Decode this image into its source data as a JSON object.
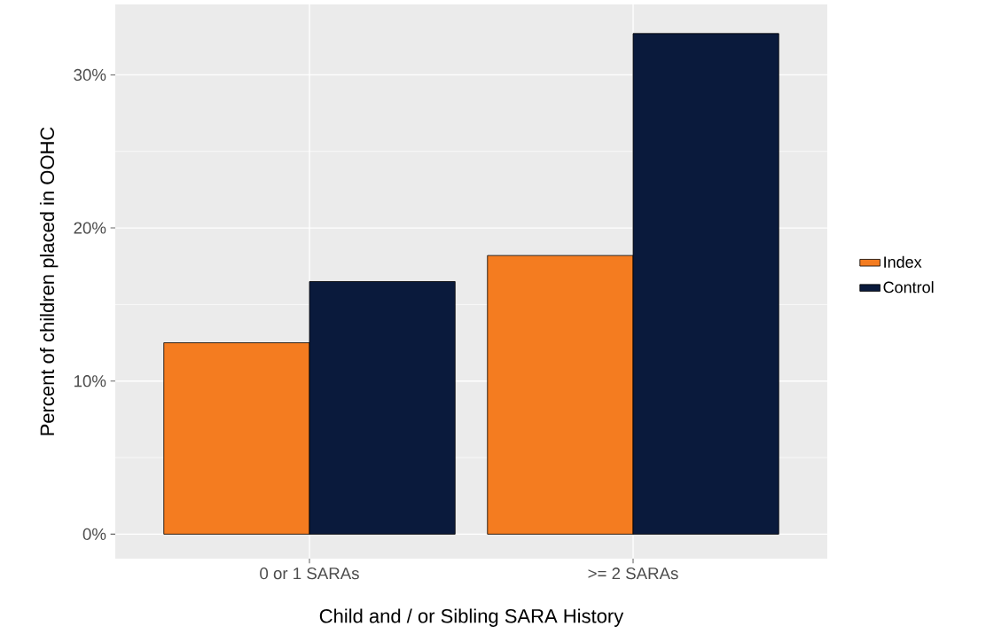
{
  "chart_data": {
    "type": "bar",
    "xlabel": "Child and / or Sibling SARA History",
    "ylabel": "Percent of children placed in OOHC",
    "categories": [
      "0 or 1 SARAs",
      ">= 2 SARAs"
    ],
    "series": [
      {
        "name": "Index",
        "color": "#f47c20",
        "values": [
          12.5,
          18.2
        ]
      },
      {
        "name": "Control",
        "color": "#0a1a3c",
        "values": [
          16.5,
          32.7
        ]
      }
    ],
    "ylim": [
      -1.6,
      34.6
    ],
    "yticks": [
      {
        "value": 0,
        "label": "0%"
      },
      {
        "value": 10,
        "label": "10%"
      },
      {
        "value": 20,
        "label": "20%"
      },
      {
        "value": 30,
        "label": "30%"
      }
    ],
    "grid": true,
    "legend": "right"
  }
}
